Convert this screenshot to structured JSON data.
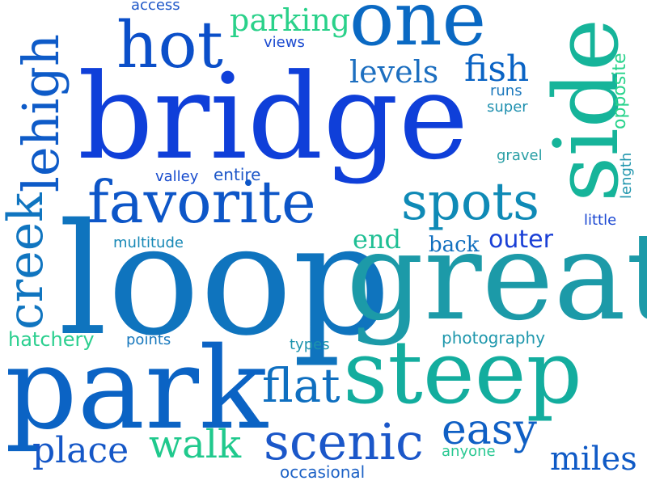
{
  "words": [
    {
      "text": "bridge",
      "color": "#0f3fd9"
    },
    {
      "text": "loop",
      "color": "#0f74be"
    },
    {
      "text": "great",
      "color": "#1c9aa8"
    },
    {
      "text": "park",
      "color": "#0b63c4"
    },
    {
      "text": "steep",
      "color": "#13ad9e"
    },
    {
      "text": "side",
      "color": "#16b49a"
    },
    {
      "text": "one",
      "color": "#0a69c3"
    },
    {
      "text": "favorite",
      "color": "#0d56c8"
    },
    {
      "text": "hot",
      "color": "#0b4fc9"
    },
    {
      "text": "creek",
      "color": "#1075c0"
    },
    {
      "text": "lehigh",
      "color": "#0e5bc8"
    },
    {
      "text": "spots",
      "color": "#0f8ab6"
    },
    {
      "text": "scenic",
      "color": "#1b57c9"
    },
    {
      "text": "walk",
      "color": "#20c98d"
    },
    {
      "text": "easy",
      "color": "#0f5fc4"
    },
    {
      "text": "place",
      "color": "#1557c7"
    },
    {
      "text": "flat",
      "color": "#0f6fc0"
    },
    {
      "text": "fish",
      "color": "#0a63c4"
    },
    {
      "text": "parking",
      "color": "#2ad18a"
    },
    {
      "text": "levels",
      "color": "#1d6fc0"
    },
    {
      "text": "end",
      "color": "#1fbf94"
    },
    {
      "text": "outer",
      "color": "#1b40d6"
    },
    {
      "text": "back",
      "color": "#1270bf"
    },
    {
      "text": "miles",
      "color": "#0f5ac6"
    },
    {
      "text": "opposite",
      "color": "#29d38c"
    },
    {
      "text": "hatchery",
      "color": "#2bcf8f"
    },
    {
      "text": "points",
      "color": "#1778bd"
    },
    {
      "text": "types",
      "color": "#1d93ad"
    },
    {
      "text": "photography",
      "color": "#1e97ac"
    },
    {
      "text": "runs",
      "color": "#1d79bd"
    },
    {
      "text": "super",
      "color": "#1f90af"
    },
    {
      "text": "gravel",
      "color": "#2a9fa5"
    },
    {
      "text": "valley",
      "color": "#174bcd"
    },
    {
      "text": "entire",
      "color": "#1d57c8"
    },
    {
      "text": "multitude",
      "color": "#1788b6"
    },
    {
      "text": "access",
      "color": "#1e57c8"
    },
    {
      "text": "views",
      "color": "#1b4ad0"
    },
    {
      "text": "length",
      "color": "#1f95ad"
    },
    {
      "text": "little",
      "color": "#1a47d2"
    },
    {
      "text": "anyone",
      "color": "#29c892"
    },
    {
      "text": "occasional",
      "color": "#1d62c6"
    }
  ]
}
